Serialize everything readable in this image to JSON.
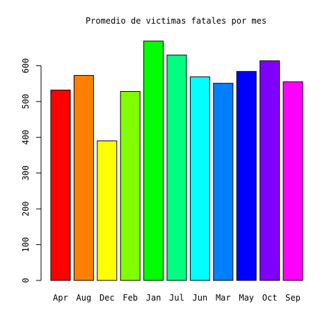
{
  "chart_data": {
    "type": "bar",
    "title": "Promedio de victimas fatales por mes",
    "xlabel": "",
    "ylabel": "",
    "categories": [
      "Apr",
      "Aug",
      "Dec",
      "Feb",
      "Jan",
      "Jul",
      "Jun",
      "Mar",
      "May",
      "Oct",
      "Sep"
    ],
    "values": [
      532,
      573,
      390,
      528,
      669,
      630,
      569,
      551,
      584,
      614,
      555
    ],
    "colors": [
      "#FF0000",
      "#FF8000",
      "#FFFF00",
      "#80FF00",
      "#00FF00",
      "#00FF80",
      "#00FFFF",
      "#0080FF",
      "#0000FF",
      "#8000FF",
      "#FF00FF"
    ],
    "ylim": [
      0,
      669
    ],
    "yticks": [
      0,
      100,
      200,
      300,
      400,
      500,
      600
    ],
    "grid": false,
    "legend": "none"
  }
}
